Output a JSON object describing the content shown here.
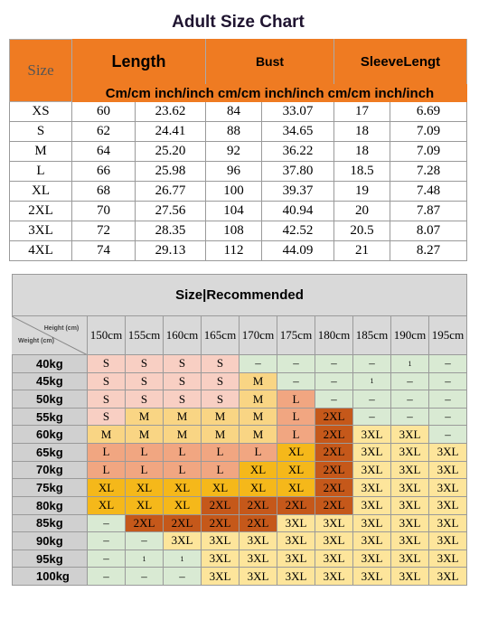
{
  "size_chart": {
    "title": "Adult Size Chart",
    "header": [
      "Size",
      "Length",
      "Bust",
      "SleeveLengt"
    ],
    "subheader": "Cm/cm inch/inch cm/cm inch/inch cm/cm inch/inch",
    "rows": [
      [
        "XS",
        "60",
        "23.62",
        "84",
        "33.07",
        "17",
        "6.69"
      ],
      [
        "S",
        "62",
        "24.41",
        "88",
        "34.65",
        "18",
        "7.09"
      ],
      [
        "M",
        "64",
        "25.20",
        "92",
        "36.22",
        "18",
        "7.09"
      ],
      [
        "L",
        "66",
        "25.98",
        "96",
        "37.80",
        "18.5",
        "7.28"
      ],
      [
        "XL",
        "68",
        "26.77",
        "100",
        "39.37",
        "19",
        "7.48"
      ],
      [
        "2XL",
        "70",
        "27.56",
        "104",
        "40.94",
        "20",
        "7.87"
      ],
      [
        "3XL",
        "72",
        "28.35",
        "108",
        "42.52",
        "20.5",
        "8.07"
      ],
      [
        "4XL",
        "74",
        "29.13",
        "112",
        "44.09",
        "21",
        "8.27"
      ]
    ]
  },
  "recommended": {
    "title": "Size|Recommended",
    "height_label": "Height (cm)",
    "weight_label": "Weight (cm)",
    "heights": [
      "150cm",
      "155cm",
      "160cm",
      "165cm",
      "170cm",
      "175cm",
      "180cm",
      "185cm",
      "190cm",
      "195cm"
    ],
    "rows": [
      {
        "weight": "40kg",
        "cells": [
          "S",
          "S",
          "S",
          "S",
          "–",
          "–",
          "–",
          "–",
          "1",
          "–"
        ]
      },
      {
        "weight": "45kg",
        "cells": [
          "S",
          "S",
          "S",
          "S",
          "M",
          "–",
          "–",
          "1",
          "–",
          "–"
        ]
      },
      {
        "weight": "50kg",
        "cells": [
          "S",
          "S",
          "S",
          "S",
          "M",
          "L",
          "–",
          "–",
          "–",
          "–"
        ]
      },
      {
        "weight": "55kg",
        "cells": [
          "S",
          "M",
          "M",
          "M",
          "M",
          "L",
          "2XL",
          "–",
          "–",
          "–"
        ]
      },
      {
        "weight": "60kg",
        "cells": [
          "M",
          "M",
          "M",
          "M",
          "M",
          "L",
          "2XL",
          "3XL",
          "3XL",
          "–"
        ]
      },
      {
        "weight": "65kg",
        "cells": [
          "L",
          "L",
          "L",
          "L",
          "L",
          "XL",
          "2XL",
          "3XL",
          "3XL",
          "3XL"
        ]
      },
      {
        "weight": "70kg",
        "cells": [
          "L",
          "L",
          "L",
          "L",
          "XL",
          "XL",
          "2XL",
          "3XL",
          "3XL",
          "3XL"
        ]
      },
      {
        "weight": "75kg",
        "cells": [
          "XL",
          "XL",
          "XL",
          "XL",
          "XL",
          "XL",
          "2XL",
          "3XL",
          "3XL",
          "3XL"
        ]
      },
      {
        "weight": "80kg",
        "cells": [
          "XL",
          "XL",
          "XL",
          "2XL",
          "2XL",
          "2XL",
          "2XL",
          "3XL",
          "3XL",
          "3XL"
        ]
      },
      {
        "weight": "85kg",
        "cells": [
          "–",
          "2XL",
          "2XL",
          "2XL",
          "2XL",
          "3XL",
          "3XL",
          "3XL",
          "3XL",
          "3XL"
        ]
      },
      {
        "weight": "90kg",
        "cells": [
          "–",
          "–",
          "3XL",
          "3XL",
          "3XL",
          "3XL",
          "3XL",
          "3XL",
          "3XL",
          "3XL"
        ]
      },
      {
        "weight": "95kg",
        "cells": [
          "–",
          "1",
          "1",
          "3XL",
          "3XL",
          "3XL",
          "3XL",
          "3XL",
          "3XL",
          "3XL"
        ]
      },
      {
        "weight": "100kg",
        "cells": [
          "–",
          "–",
          "–",
          "3XL",
          "3XL",
          "3XL",
          "3XL",
          "3XL",
          "3XL",
          "3XL"
        ]
      }
    ],
    "cell_colors": {
      "S": "#f8cfc3",
      "M": "#f9d584",
      "L": "#f1a681",
      "XL": "#f5b81a",
      "2XL": "#c5581a",
      "3XL": "#fde59b",
      "–": "#d9ead3",
      "1": "#d9ead3"
    }
  }
}
